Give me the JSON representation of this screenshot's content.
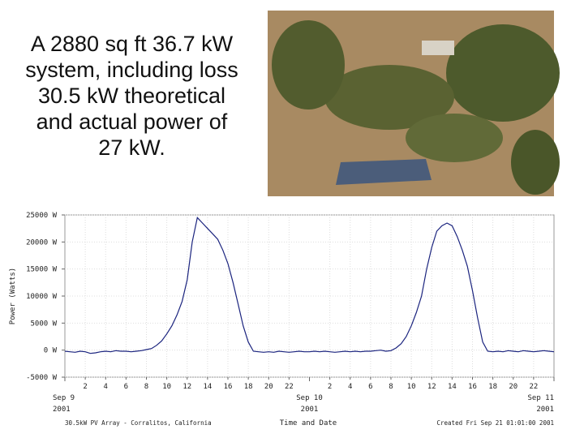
{
  "caption_lines": [
    "A 2880 sq ft 36.7 kW",
    "system, including loss",
    "30.5 kW theoretical",
    "and actual power of",
    "27 kW."
  ],
  "chart_data": {
    "type": "line",
    "ylabel": "Power (Watts)",
    "xlabel": "Time and Date",
    "footer_left": "30.5kW PV Array - Corralitos, California",
    "footer_right": "Created Fri Sep 21 01:01:00 2001",
    "xlim": [
      0,
      48
    ],
    "ylim": [
      -5000,
      25000
    ],
    "yticks": [
      {
        "value": -5000,
        "label": "-5000 W"
      },
      {
        "value": 0,
        "label": "0 W"
      },
      {
        "value": 5000,
        "label": "5000 W"
      },
      {
        "value": 10000,
        "label": "10000 W"
      },
      {
        "value": 15000,
        "label": "15000 W"
      },
      {
        "value": 20000,
        "label": "20000 W"
      },
      {
        "value": 25000,
        "label": "25000 W"
      }
    ],
    "xticks": [
      2,
      4,
      6,
      8,
      10,
      12,
      14,
      16,
      18,
      20,
      22,
      {
        "value": 26,
        "label": "2"
      },
      {
        "value": 28,
        "label": "4"
      },
      {
        "value": 30,
        "label": "6"
      },
      {
        "value": 32,
        "label": "8"
      },
      {
        "value": 34,
        "label": "10"
      },
      {
        "value": 36,
        "label": "12"
      },
      {
        "value": 38,
        "label": "14"
      },
      {
        "value": 40,
        "label": "16"
      },
      {
        "value": 42,
        "label": "18"
      },
      {
        "value": 44,
        "label": "20"
      },
      {
        "value": 46,
        "label": "22"
      }
    ],
    "date_ticks": [
      {
        "value": 0,
        "label": "Sep 9",
        "year": "2001"
      },
      {
        "value": 24,
        "label": "Sep 10",
        "year": "2001"
      },
      {
        "value": 48,
        "label": "Sep 11",
        "year": "2001"
      }
    ],
    "grid": true,
    "series": [
      {
        "color": "#1a237e",
        "x": [
          0,
          0.5,
          1,
          1.5,
          2,
          2.5,
          3,
          3.5,
          4,
          4.5,
          5,
          5.5,
          6,
          6.5,
          7,
          7.5,
          8,
          8.5,
          9,
          9.5,
          10,
          10.5,
          11,
          11.5,
          12,
          12.5,
          13,
          13.5,
          14,
          14.5,
          15,
          15.5,
          16,
          16.5,
          17,
          17.5,
          18,
          18.5,
          19,
          19.5,
          20,
          20.5,
          21,
          21.5,
          22,
          22.5,
          23,
          23.5,
          24,
          24.5,
          25,
          25.5,
          26,
          26.5,
          27,
          27.5,
          28,
          28.5,
          29,
          29.5,
          30,
          30.5,
          31,
          31.5,
          32,
          32.5,
          33,
          33.5,
          34,
          34.5,
          35,
          35.5,
          36,
          36.5,
          37,
          37.5,
          38,
          38.5,
          39,
          39.5,
          40,
          40.5,
          41,
          41.5,
          42,
          42.5,
          43,
          43.5,
          44,
          44.5,
          45,
          45.5,
          46,
          46.5,
          47,
          47.5,
          48
        ],
        "values": [
          -200,
          -300,
          -400,
          -200,
          -300,
          -600,
          -500,
          -300,
          -200,
          -300,
          -100,
          -200,
          -200,
          -300,
          -200,
          -100,
          100,
          300,
          900,
          1700,
          3000,
          4500,
          6500,
          9000,
          13000,
          20000,
          24500,
          23500,
          22500,
          21500,
          20500,
          18500,
          16000,
          12500,
          8500,
          4500,
          1500,
          -200,
          -300,
          -400,
          -300,
          -400,
          -200,
          -300,
          -400,
          -300,
          -200,
          -300,
          -300,
          -200,
          -300,
          -200,
          -300,
          -400,
          -300,
          -200,
          -300,
          -200,
          -300,
          -200,
          -200,
          -100,
          0,
          -200,
          -100,
          400,
          1200,
          2500,
          4500,
          7000,
          10000,
          15000,
          19000,
          22000,
          23000,
          23500,
          23000,
          21000,
          18500,
          15500,
          11000,
          6000,
          1500,
          -200,
          -300,
          -200,
          -300,
          -100,
          -200,
          -300,
          -100,
          -200,
          -300,
          -200,
          -100,
          -200,
          -300
        ]
      }
    ]
  }
}
